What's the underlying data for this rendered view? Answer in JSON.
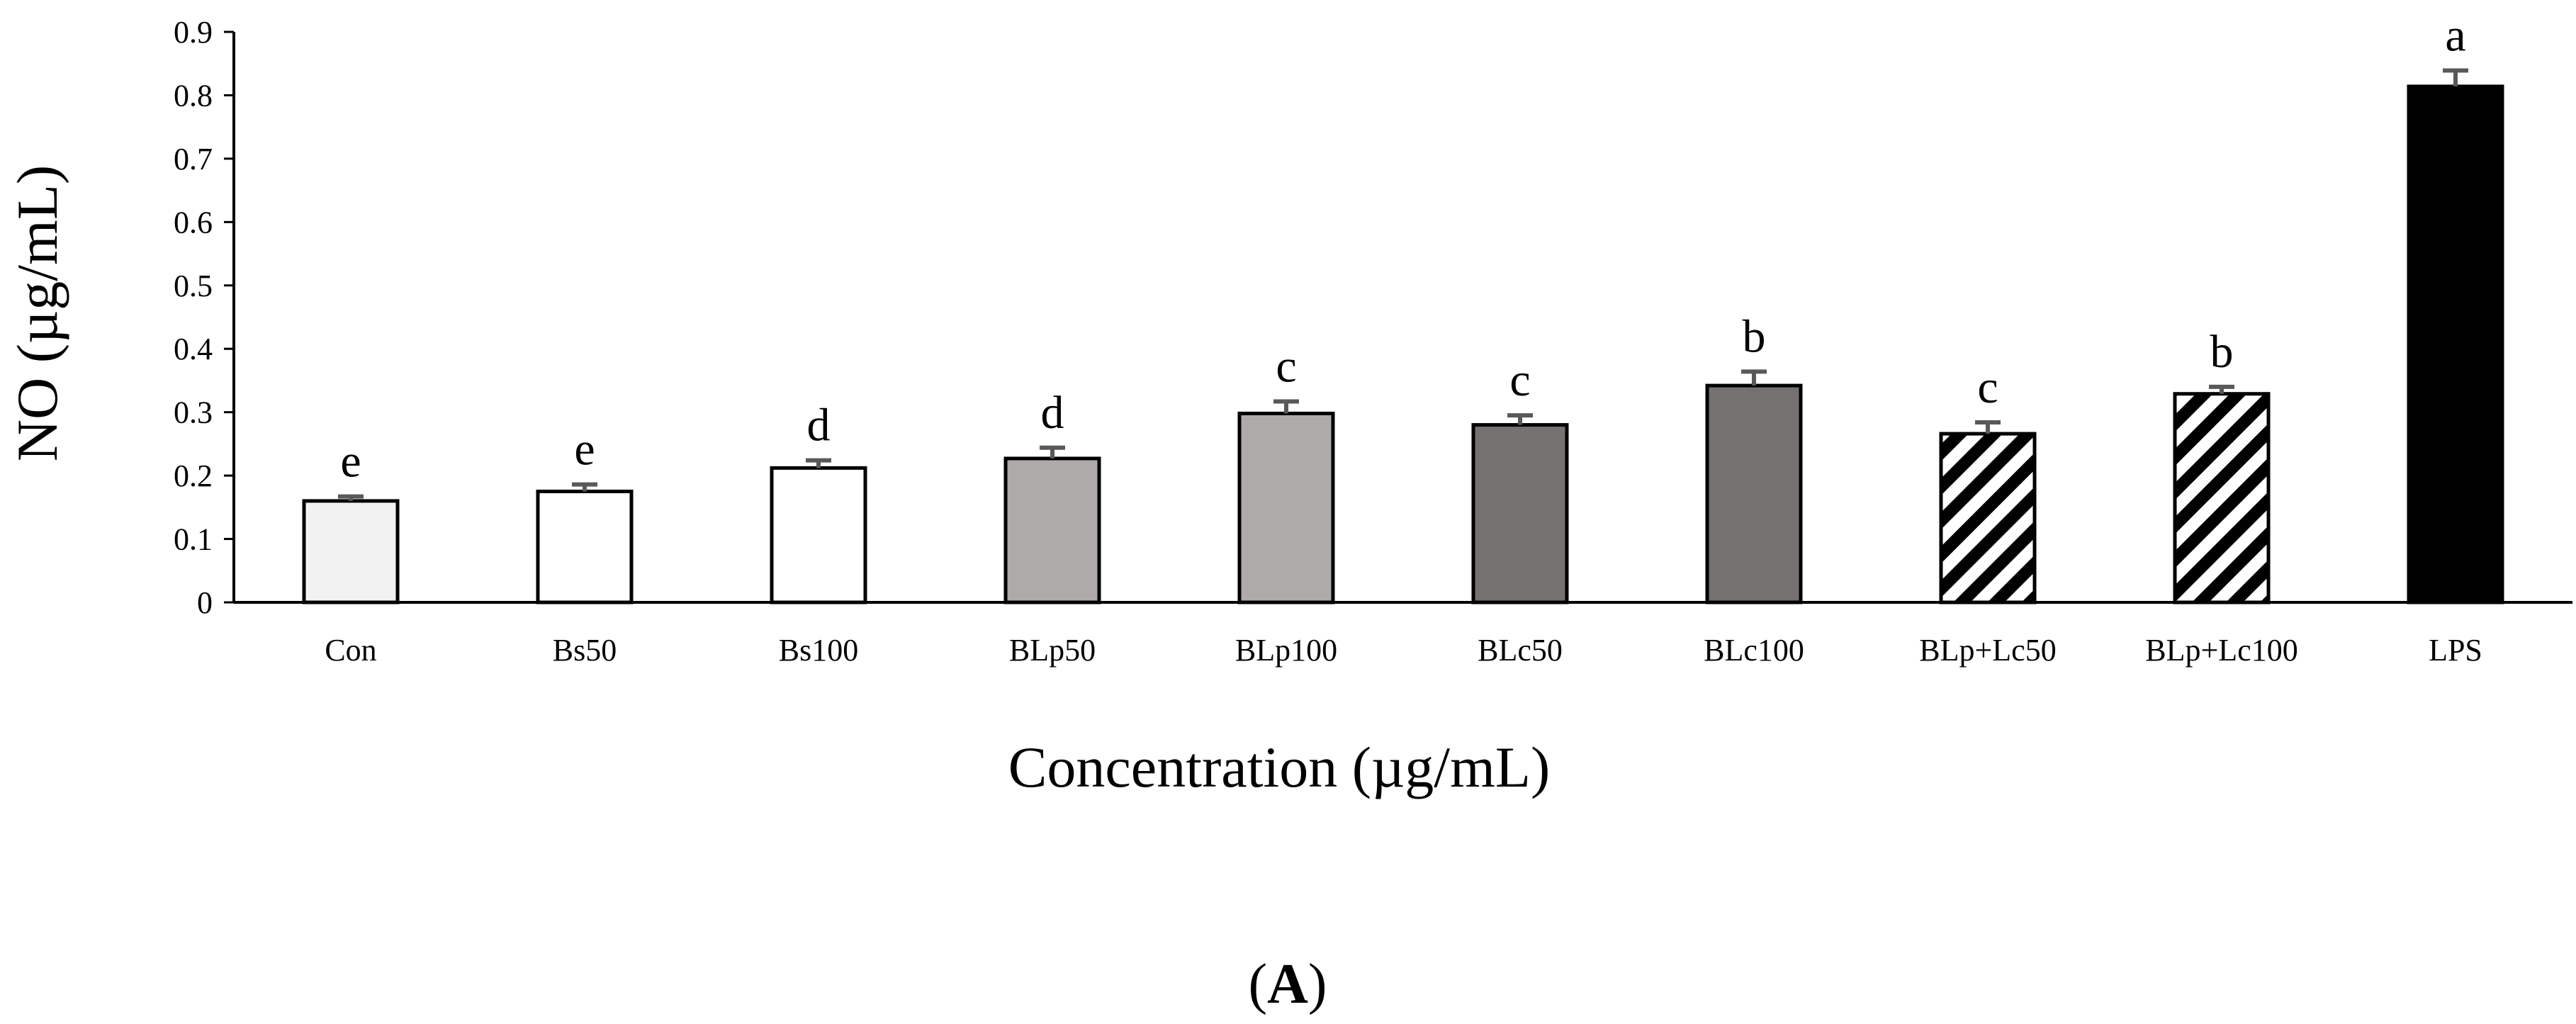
{
  "chart_data": {
    "type": "bar",
    "categories": [
      "Con",
      "Bs50",
      "Bs100",
      "BLp50",
      "BLp100",
      "BLc50",
      "BLc100",
      "BLp+Lc50",
      "BLp+Lc100",
      "LPS"
    ],
    "values": [
      0.16,
      0.175,
      0.212,
      0.227,
      0.298,
      0.28,
      0.342,
      0.266,
      0.329,
      0.814
    ],
    "errors": [
      0.007,
      0.011,
      0.012,
      0.017,
      0.019,
      0.015,
      0.022,
      0.018,
      0.011,
      0.025
    ],
    "significance": [
      "e",
      "e",
      "d",
      "d",
      "c",
      "c",
      "b",
      "c",
      "b",
      "a"
    ],
    "fills": [
      "light-gray",
      "white",
      "white",
      "medium-gray",
      "medium-gray",
      "dark-gray",
      "dark-gray",
      "diagonal-stripes",
      "diagonal-stripes",
      "black"
    ],
    "title": "",
    "xlabel": "Concentration (µg/mL)",
    "ylabel": "NO (µg/mL)",
    "ylim": [
      0,
      0.9
    ],
    "yticks": [
      "0",
      "0.1",
      "0.2",
      "0.3",
      "0.4",
      "0.5",
      "0.6",
      "0.7",
      "0.8",
      "0.9"
    ],
    "grid": false,
    "legend": "none"
  },
  "panel_label": {
    "open": "(",
    "letter": "A",
    "close": ")"
  },
  "colors": {
    "light-gray": "#f2f2f2",
    "white": "#ffffff",
    "medium-gray": "#aeaaaa",
    "dark-gray": "#767171",
    "black": "#000000",
    "error-bar": "#595959",
    "axis": "#000000"
  }
}
